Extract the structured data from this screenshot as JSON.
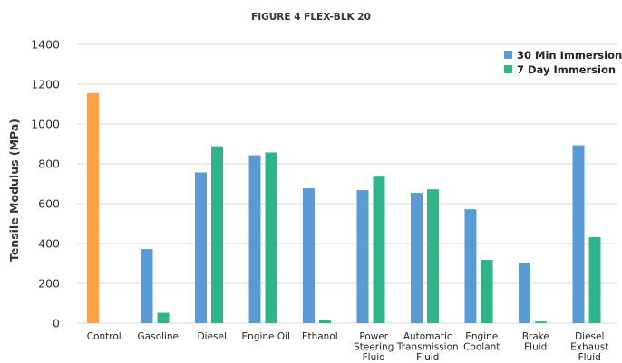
{
  "chart_data": {
    "type": "bar",
    "title": "FIGURE 4 FLEX-BLK 20",
    "xlabel": "",
    "ylabel": "Tensile Modulus (MPa)",
    "ylim": [
      0,
      1400
    ],
    "yticks": [
      0,
      200,
      400,
      600,
      800,
      1000,
      1200,
      1400
    ],
    "grid": true,
    "legend_position": "top-right",
    "categories": [
      [
        "Control"
      ],
      [
        "Gasoline"
      ],
      [
        "Diesel"
      ],
      [
        "Engine Oil"
      ],
      [
        "Ethanol"
      ],
      [
        "Power",
        "Steering",
        "Fluid"
      ],
      [
        "Automatic",
        "Transmission",
        "Fluid"
      ],
      [
        "Engine",
        "Coolant"
      ],
      [
        "Brake",
        "Fluid"
      ],
      [
        "Diesel",
        "Exhaust",
        "Fluid"
      ]
    ],
    "control": {
      "value": 1155,
      "color": "#fba24d"
    },
    "series": [
      {
        "name": "30 Min Immersion",
        "color": "#5b9bd5",
        "values": [
          null,
          372,
          757,
          843,
          677,
          668,
          654,
          572,
          300,
          893
        ]
      },
      {
        "name": "7 Day Immersion",
        "color": "#2fb38b",
        "values": [
          null,
          52,
          888,
          857,
          15,
          740,
          672,
          318,
          8,
          432
        ]
      }
    ]
  }
}
